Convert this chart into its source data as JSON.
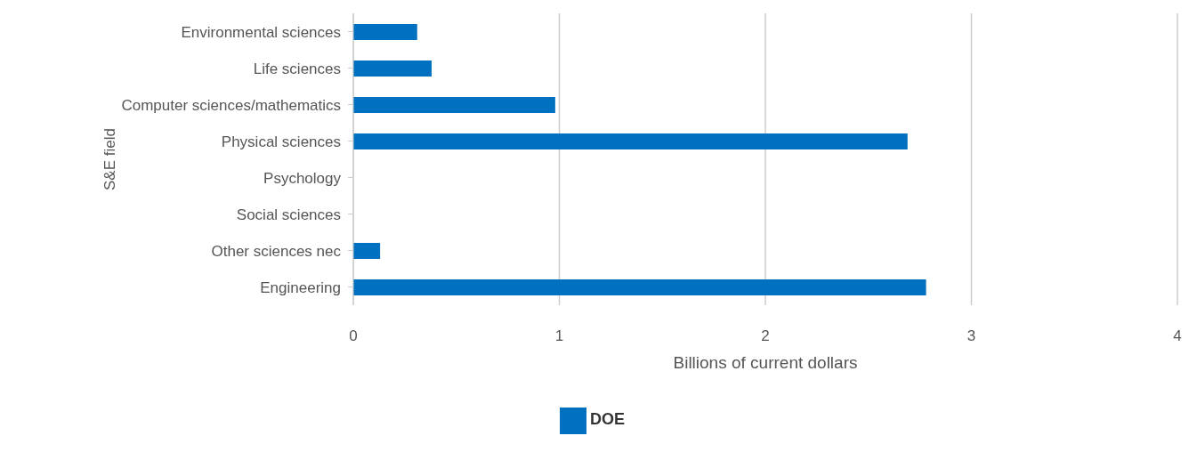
{
  "chart_data": {
    "type": "bar",
    "orientation": "horizontal",
    "xlabel": "Billions of current dollars",
    "ylabel": "S&E field",
    "categories": [
      "Environmental sciences",
      "Life sciences",
      "Computer sciences/mathematics",
      "Physical sciences",
      "Psychology",
      "Social sciences",
      "Other sciences nec",
      "Engineering"
    ],
    "series": [
      {
        "name": "DOE",
        "color": "#0070c0",
        "values": [
          0.31,
          0.38,
          0.98,
          2.69,
          0,
          0,
          0.13,
          2.78
        ]
      }
    ],
    "xlim": [
      0,
      4
    ],
    "xticks": [
      0,
      1,
      2,
      3,
      4
    ],
    "grid": "x",
    "legend": "bottom"
  }
}
